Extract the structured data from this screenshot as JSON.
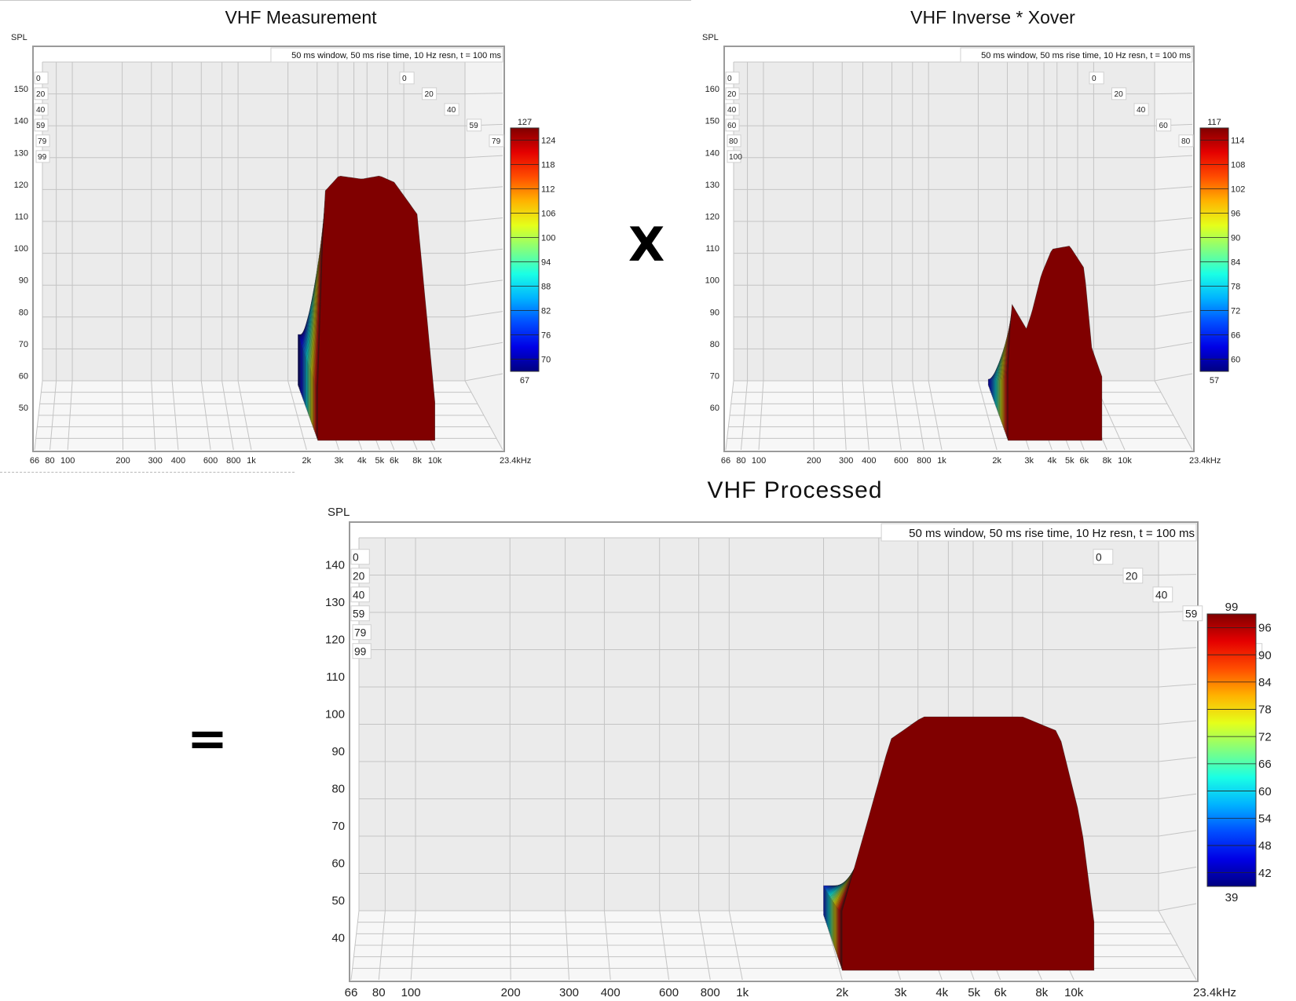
{
  "operators": {
    "times": "X",
    "equals": "="
  },
  "chart_data": [
    {
      "type": "waterfall",
      "title": "VHF Measurement",
      "ylabel": "SPL",
      "xlabel": "",
      "info": "50 ms window, 50 ms rise time,  10 Hz resn, t = 100 ms",
      "x_scale": "log",
      "xlim": [
        66,
        23400
      ],
      "x_ticks": [
        66,
        80,
        100,
        200,
        300,
        400,
        600,
        800,
        1000,
        2000,
        3000,
        4000,
        5000,
        6000,
        8000,
        10000,
        23400
      ],
      "x_tick_labels": [
        "66",
        "80",
        "100",
        "200",
        "300",
        "400",
        "600",
        "800",
        "1k",
        "2k",
        "3k",
        "4k",
        "5k",
        "6k",
        "8k",
        "10k",
        "23.4kHz"
      ],
      "y_ticks": [
        50,
        60,
        70,
        80,
        90,
        100,
        110,
        120,
        130,
        140,
        150
      ],
      "time_ticks_ms": [
        "0",
        "20",
        "40",
        "59",
        "79",
        "99"
      ],
      "colorbar": {
        "min": 67,
        "max": 127,
        "ticks": [
          70,
          76,
          82,
          88,
          94,
          100,
          106,
          112,
          118,
          124
        ]
      },
      "surface": {
        "front_profile": {
          "x": [
            2300,
            2500,
            3000,
            4000,
            5000,
            6000,
            8000,
            10000
          ],
          "y": [
            66,
            128,
            133,
            132,
            133,
            131,
            121,
            62
          ]
        },
        "back_level": 66
      }
    },
    {
      "type": "waterfall",
      "title": "VHF Inverse * Xover",
      "ylabel": "SPL",
      "xlabel": "",
      "info": "50 ms window, 50 ms rise time,  10 Hz resn, t = 100 ms",
      "x_scale": "log",
      "xlim": [
        66,
        23400
      ],
      "x_ticks": [
        66,
        80,
        100,
        200,
        300,
        400,
        600,
        800,
        1000,
        2000,
        3000,
        4000,
        5000,
        6000,
        8000,
        10000,
        23400
      ],
      "x_tick_labels": [
        "66",
        "80",
        "100",
        "200",
        "300",
        "400",
        "600",
        "800",
        "1k",
        "2k",
        "3k",
        "4k",
        "5k",
        "6k",
        "8k",
        "10k",
        "23.4kHz"
      ],
      "y_ticks": [
        60,
        70,
        80,
        90,
        100,
        110,
        120,
        130,
        140,
        150,
        160
      ],
      "time_ticks_ms": [
        "0",
        "20",
        "40",
        "60",
        "80",
        "100"
      ],
      "colorbar": {
        "min": 57,
        "max": 117,
        "ticks": [
          60,
          66,
          72,
          78,
          84,
          90,
          96,
          102,
          108,
          114
        ]
      },
      "surface": {
        "front_profile": {
          "x": [
            2300,
            2400,
            2900,
            3100,
            3500,
            4000,
            5000,
            6000,
            6600,
            7500
          ],
          "y": [
            82,
            103,
            95,
            100,
            112,
            120,
            121,
            114,
            89,
            80
          ]
        },
        "back_level": 62
      }
    },
    {
      "type": "waterfall",
      "title": "VHF Processed",
      "ylabel": "SPL",
      "xlabel": "",
      "info": "50 ms window, 50 ms rise time,  10 Hz resn, t = 100 ms",
      "x_scale": "log",
      "xlim": [
        66,
        23400
      ],
      "x_ticks": [
        66,
        80,
        100,
        200,
        300,
        400,
        600,
        800,
        1000,
        2000,
        3000,
        4000,
        5000,
        6000,
        8000,
        10000,
        23400
      ],
      "x_tick_labels": [
        "66",
        "80",
        "100",
        "200",
        "300",
        "400",
        "600",
        "800",
        "1k",
        "2k",
        "3k",
        "4k",
        "5k",
        "6k",
        "8k",
        "10k",
        "23.4kHz"
      ],
      "y_ticks": [
        40,
        50,
        60,
        70,
        80,
        90,
        100,
        110,
        120,
        130,
        140
      ],
      "time_ticks_ms": [
        "0",
        "20",
        "40",
        "59",
        "79",
        "99"
      ],
      "colorbar": {
        "min": 39,
        "max": 99,
        "ticks": [
          42,
          48,
          54,
          60,
          66,
          72,
          78,
          84,
          90,
          96
        ]
      },
      "surface": {
        "front_profile": {
          "x": [
            2000,
            2300,
            2800,
            3500,
            5000,
            7000,
            9000,
            10500,
            11500
          ],
          "y": [
            56,
            75,
            102,
            108,
            108,
            108,
            104,
            80,
            53
          ]
        },
        "back_level": 48
      }
    }
  ]
}
